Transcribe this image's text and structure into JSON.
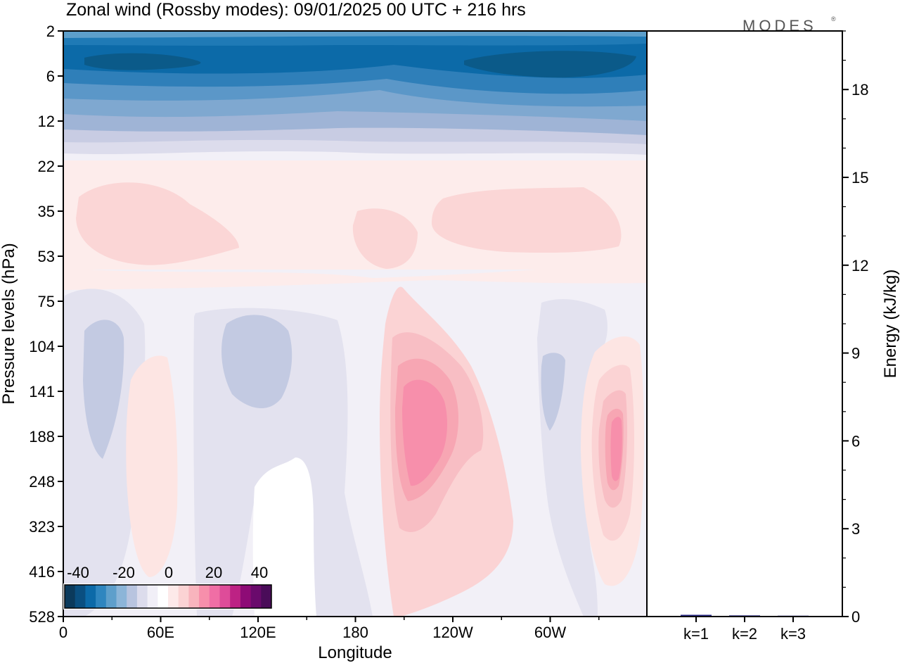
{
  "chart_data": {
    "type": "heatmap",
    "title": "Zonal wind (Rossby modes):  09/01/2025  00 UTC  + 216 hrs",
    "logo": "MODES",
    "logo_mark": "®",
    "xlabel": "Longitude",
    "ylabel": "Pressure levels (hPa)",
    "x_ticks": [
      "0",
      "60E",
      "120E",
      "180",
      "120W",
      "60W"
    ],
    "y_ticks": [
      "2",
      "6",
      "12",
      "22",
      "35",
      "53",
      "75",
      "104",
      "141",
      "188",
      "248",
      "323",
      "416",
      "528"
    ],
    "colorbar": {
      "tick_labels": [
        "-40",
        "-20",
        "0",
        "20",
        "40"
      ],
      "colors": [
        "#0b3a5c",
        "#0a4f80",
        "#0c6aa8",
        "#2f86bf",
        "#5e9fcb",
        "#8cb5d8",
        "#b8c4df",
        "#dcdcec",
        "#f1eff7",
        "#ffffff",
        "#fde9e9",
        "#fbd3d4",
        "#f8b4bd",
        "#f78fab",
        "#f06ea5",
        "#de4c99",
        "#bd2284",
        "#8e0b76",
        "#6a0a6c",
        "#4a0c59"
      ]
    },
    "bar_panel": {
      "type": "bar",
      "ylabel": "Energy (kJ/kg)",
      "ylim": [
        0,
        20
      ],
      "y_ticks": [
        "0",
        "3",
        "6",
        "9",
        "12",
        "15",
        "18"
      ],
      "categories": [
        "k=1",
        "k=2",
        "k=3"
      ],
      "values": [
        0.06,
        0.04,
        0.03
      ],
      "bar_color": "#2a2a8a"
    }
  }
}
